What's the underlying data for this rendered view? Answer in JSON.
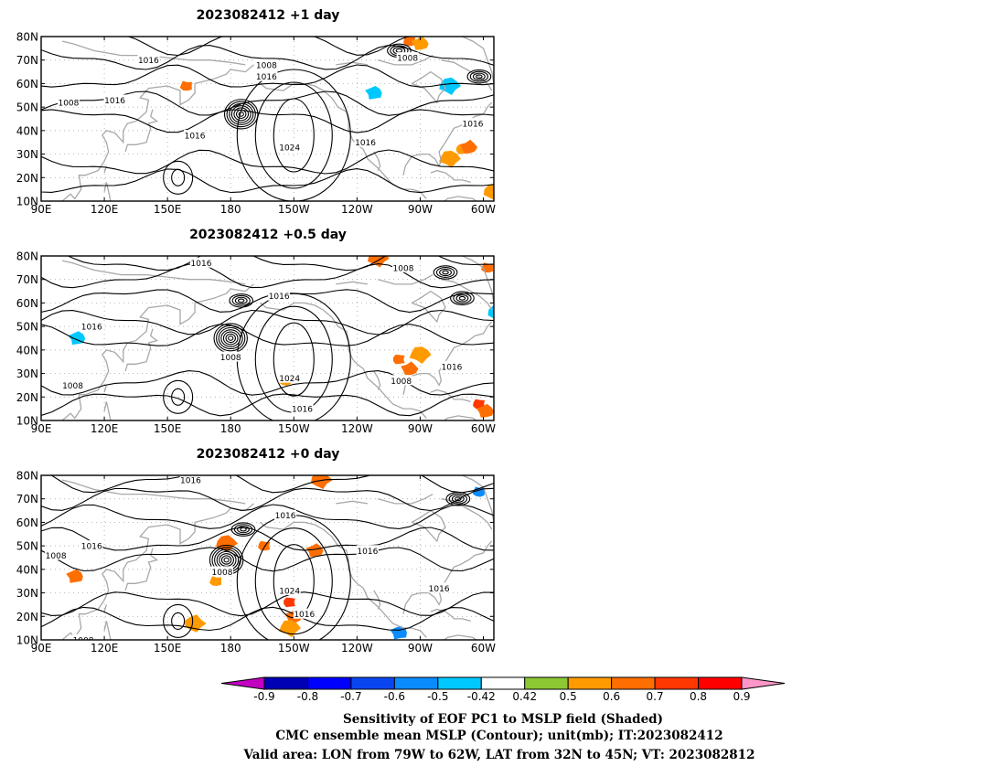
{
  "chart_data": {
    "type": "contour_map",
    "colorbar": {
      "levels": [
        "-0.9",
        "-0.8",
        "-0.7",
        "-0.6",
        "-0.5",
        "-0.42",
        "0.42",
        "0.5",
        "0.6",
        "0.7",
        "0.8",
        "0.9"
      ],
      "colors": [
        "#c200c2",
        "#0000b4",
        "#0000ff",
        "#0a46f0",
        "#0a8cff",
        "#00c8ff",
        "#ffffff",
        "#8cc832",
        "#ff9b00",
        "#ff6e00",
        "#ff3700",
        "#ff0000",
        "#ff96c8"
      ]
    },
    "x_ticks": [
      "90E",
      "120E",
      "150E",
      "180",
      "150W",
      "120W",
      "90W",
      "60W"
    ],
    "y_ticks": [
      "10N",
      "20N",
      "30N",
      "40N",
      "50N",
      "60N",
      "70N",
      "80N"
    ],
    "panels": [
      {
        "title": "2023082412 +1 day",
        "lows": [
          {
            "lon": -175,
            "lat": 47
          },
          {
            "lon": -100,
            "lat": 74
          },
          {
            "lon": -62,
            "lat": 63
          }
        ],
        "highs": [
          {
            "lon": -150,
            "lat": 38
          },
          {
            "lon": 155,
            "lat": 20
          }
        ],
        "contour_labels": [
          {
            "text": "1016",
            "lon": 141,
            "lat": 70
          },
          {
            "text": "1008",
            "lon": -163,
            "lat": 68
          },
          {
            "text": "1016",
            "lon": -163,
            "lat": 63
          },
          {
            "text": "1008",
            "lon": -96,
            "lat": 71
          },
          {
            "text": "1016",
            "lon": 125,
            "lat": 53
          },
          {
            "text": "1008",
            "lon": 103,
            "lat": 52
          },
          {
            "text": "1016",
            "lon": 163,
            "lat": 38
          },
          {
            "text": "1024",
            "lon": -152,
            "lat": 33
          },
          {
            "text": "1016",
            "lon": -116,
            "lat": 35
          },
          {
            "text": "1016",
            "lon": -65,
            "lat": 43
          }
        ],
        "shaded": [
          {
            "lon": -70,
            "lat": 32,
            "value": 0.5
          },
          {
            "lon": -67,
            "lat": 33,
            "value": 0.6
          },
          {
            "lon": -76,
            "lat": 28,
            "value": 0.5
          },
          {
            "lon": -95,
            "lat": 78,
            "value": 0.6
          },
          {
            "lon": -90,
            "lat": 77,
            "value": 0.5
          },
          {
            "lon": -76,
            "lat": 59,
            "value": -0.5
          },
          {
            "lon": 159,
            "lat": 59,
            "value": 0.6
          },
          {
            "lon": -112,
            "lat": 56,
            "value": -0.5
          },
          {
            "lon": -55,
            "lat": 14,
            "value": 0.5
          }
        ]
      },
      {
        "title": "2023082412 +0.5 day",
        "lows": [
          {
            "lon": 180,
            "lat": 45
          },
          {
            "lon": -175,
            "lat": 61
          },
          {
            "lon": -70,
            "lat": 62
          },
          {
            "lon": -78,
            "lat": 73
          }
        ],
        "highs": [
          {
            "lon": -150,
            "lat": 36
          },
          {
            "lon": 155,
            "lat": 20
          }
        ],
        "contour_labels": [
          {
            "text": "1016",
            "lon": 166,
            "lat": 77
          },
          {
            "text": "1008",
            "lon": -98,
            "lat": 75
          },
          {
            "text": "1016",
            "lon": -157,
            "lat": 63
          },
          {
            "text": "1016",
            "lon": 114,
            "lat": 50
          },
          {
            "text": "1008",
            "lon": -180,
            "lat": 37
          },
          {
            "text": "1024",
            "lon": -152,
            "lat": 28
          },
          {
            "text": "1008",
            "lon": -99,
            "lat": 27
          },
          {
            "text": "1016",
            "lon": -75,
            "lat": 33
          },
          {
            "text": "1016",
            "lon": -146,
            "lat": 15
          },
          {
            "text": "1008",
            "lon": 105,
            "lat": 25
          }
        ],
        "shaded": [
          {
            "lon": -100,
            "lat": 36,
            "value": 0.6
          },
          {
            "lon": -95,
            "lat": 32,
            "value": 0.6
          },
          {
            "lon": -90,
            "lat": 38,
            "value": 0.5
          },
          {
            "lon": -62,
            "lat": 17,
            "value": 0.7
          },
          {
            "lon": -59,
            "lat": 14,
            "value": 0.6
          },
          {
            "lon": -110,
            "lat": 79,
            "value": 0.6
          },
          {
            "lon": -58,
            "lat": 75,
            "value": 0.6
          },
          {
            "lon": 107,
            "lat": 45,
            "value": -0.5
          },
          {
            "lon": -53,
            "lat": 56,
            "value": -0.5
          },
          {
            "lon": -154,
            "lat": 27,
            "value": 0.5
          }
        ]
      },
      {
        "title": "2023082412 +0 day",
        "lows": [
          {
            "lon": 178,
            "lat": 44
          },
          {
            "lon": -174,
            "lat": 57
          },
          {
            "lon": -72,
            "lat": 70
          }
        ],
        "highs": [
          {
            "lon": -150,
            "lat": 35
          },
          {
            "lon": 155,
            "lat": 18
          }
        ],
        "contour_labels": [
          {
            "text": "1016",
            "lon": 161,
            "lat": 78
          },
          {
            "text": "1016",
            "lon": -154,
            "lat": 63
          },
          {
            "text": "1016",
            "lon": 114,
            "lat": 50
          },
          {
            "text": "1008",
            "lon": 97,
            "lat": 46
          },
          {
            "text": "1008",
            "lon": 176,
            "lat": 39
          },
          {
            "text": "1024",
            "lon": -152,
            "lat": 31
          },
          {
            "text": "1016",
            "lon": -115,
            "lat": 48
          },
          {
            "text": "1016",
            "lon": -81,
            "lat": 32
          },
          {
            "text": "1016",
            "lon": -145,
            "lat": 21
          },
          {
            "text": "1008",
            "lon": 110,
            "lat": 10
          }
        ],
        "shaded": [
          {
            "lon": -152,
            "lat": 26,
            "value": 0.7
          },
          {
            "lon": -150,
            "lat": 20,
            "value": 0.6
          },
          {
            "lon": -152,
            "lat": 15,
            "value": 0.5
          },
          {
            "lon": -164,
            "lat": 50,
            "value": 0.6
          },
          {
            "lon": -140,
            "lat": 48,
            "value": 0.6
          },
          {
            "lon": 178,
            "lat": 51,
            "value": 0.6
          },
          {
            "lon": 173,
            "lat": 35,
            "value": 0.5
          },
          {
            "lon": 106,
            "lat": 37,
            "value": 0.6
          },
          {
            "lon": -137,
            "lat": 78,
            "value": 0.6
          },
          {
            "lon": -62,
            "lat": 73,
            "value": -0.6
          },
          {
            "lon": -100,
            "lat": 13,
            "value": -0.6
          },
          {
            "lon": 163,
            "lat": 17,
            "value": 0.5
          }
        ]
      }
    ]
  },
  "caption": {
    "line1": "Sensitivity of EOF PC1 to MSLP field (Shaded)",
    "line2": "CMC ensemble mean MSLP (Contour); unit(mb); IT:2023082412",
    "line3": "Valid area: LON from 79W to 62W, LAT from 32N to 45N; VT: 2023082812"
  }
}
